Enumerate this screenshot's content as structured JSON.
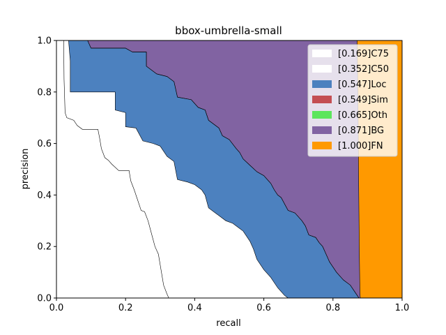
{
  "chart_data": {
    "type": "area",
    "title": "bbox-umbrella-small",
    "xlabel": "recall",
    "ylabel": "precision",
    "xlim": [
      0,
      1
    ],
    "ylim": [
      0,
      1
    ],
    "xticks": [
      "0.0",
      "0.2",
      "0.4",
      "0.6",
      "0.8",
      "1.0"
    ],
    "yticks": [
      "0.0",
      "0.2",
      "0.4",
      "0.6",
      "0.8",
      "1.0"
    ],
    "grid": false,
    "legend_position": "top-right",
    "series": [
      {
        "name": "[0.169]C75",
        "color": "#ffffff",
        "points": [
          [
            0.0,
            1.0
          ],
          [
            0.021,
            1.0
          ],
          [
            0.022,
            0.85
          ],
          [
            0.025,
            0.72
          ],
          [
            0.03,
            0.7
          ],
          [
            0.05,
            0.69
          ],
          [
            0.06,
            0.67
          ],
          [
            0.075,
            0.655
          ],
          [
            0.09,
            0.655
          ],
          [
            0.12,
            0.655
          ],
          [
            0.125,
            0.62
          ],
          [
            0.13,
            0.58
          ],
          [
            0.14,
            0.545
          ],
          [
            0.15,
            0.535
          ],
          [
            0.16,
            0.52
          ],
          [
            0.18,
            0.495
          ],
          [
            0.21,
            0.495
          ],
          [
            0.215,
            0.455
          ],
          [
            0.225,
            0.42
          ],
          [
            0.235,
            0.38
          ],
          [
            0.245,
            0.34
          ],
          [
            0.255,
            0.335
          ],
          [
            0.265,
            0.3
          ],
          [
            0.275,
            0.25
          ],
          [
            0.285,
            0.2
          ],
          [
            0.295,
            0.17
          ],
          [
            0.3,
            0.13
          ],
          [
            0.305,
            0.09
          ],
          [
            0.31,
            0.05
          ],
          [
            0.32,
            0.015
          ],
          [
            0.325,
            0.0
          ]
        ]
      },
      {
        "name": "[0.352]C50",
        "color": "#ffffff",
        "points": [
          [
            0.0,
            1.0
          ],
          [
            0.035,
            1.0
          ],
          [
            0.04,
            0.92
          ],
          [
            0.04,
            0.8
          ],
          [
            0.17,
            0.8
          ],
          [
            0.17,
            0.73
          ],
          [
            0.2,
            0.72
          ],
          [
            0.2,
            0.665
          ],
          [
            0.23,
            0.66
          ],
          [
            0.25,
            0.61
          ],
          [
            0.28,
            0.6
          ],
          [
            0.3,
            0.59
          ],
          [
            0.32,
            0.55
          ],
          [
            0.34,
            0.53
          ],
          [
            0.35,
            0.46
          ],
          [
            0.38,
            0.45
          ],
          [
            0.4,
            0.44
          ],
          [
            0.42,
            0.42
          ],
          [
            0.43,
            0.4
          ],
          [
            0.44,
            0.35
          ],
          [
            0.46,
            0.33
          ],
          [
            0.47,
            0.32
          ],
          [
            0.49,
            0.3
          ],
          [
            0.51,
            0.29
          ],
          [
            0.53,
            0.27
          ],
          [
            0.54,
            0.26
          ],
          [
            0.56,
            0.22
          ],
          [
            0.57,
            0.19
          ],
          [
            0.58,
            0.15
          ],
          [
            0.6,
            0.11
          ],
          [
            0.62,
            0.08
          ],
          [
            0.64,
            0.04
          ],
          [
            0.66,
            0.01
          ],
          [
            0.67,
            0.0
          ]
        ]
      },
      {
        "name": "[0.547]Loc",
        "color": "#4c81bf",
        "points": [
          [
            0.0,
            1.0
          ],
          [
            0.09,
            1.0
          ],
          [
            0.1,
            0.97
          ],
          [
            0.2,
            0.97
          ],
          [
            0.22,
            0.955
          ],
          [
            0.26,
            0.955
          ],
          [
            0.26,
            0.9
          ],
          [
            0.29,
            0.87
          ],
          [
            0.32,
            0.86
          ],
          [
            0.34,
            0.84
          ],
          [
            0.35,
            0.78
          ],
          [
            0.39,
            0.77
          ],
          [
            0.41,
            0.74
          ],
          [
            0.43,
            0.73
          ],
          [
            0.44,
            0.69
          ],
          [
            0.47,
            0.66
          ],
          [
            0.48,
            0.63
          ],
          [
            0.5,
            0.615
          ],
          [
            0.52,
            0.58
          ],
          [
            0.53,
            0.565
          ],
          [
            0.54,
            0.54
          ],
          [
            0.56,
            0.515
          ],
          [
            0.58,
            0.49
          ],
          [
            0.6,
            0.475
          ],
          [
            0.62,
            0.445
          ],
          [
            0.63,
            0.42
          ],
          [
            0.64,
            0.4
          ],
          [
            0.65,
            0.39
          ],
          [
            0.67,
            0.34
          ],
          [
            0.69,
            0.33
          ],
          [
            0.71,
            0.3
          ],
          [
            0.72,
            0.28
          ],
          [
            0.73,
            0.245
          ],
          [
            0.75,
            0.235
          ],
          [
            0.76,
            0.215
          ],
          [
            0.77,
            0.2
          ],
          [
            0.78,
            0.17
          ],
          [
            0.79,
            0.14
          ],
          [
            0.8,
            0.12
          ],
          [
            0.81,
            0.1
          ],
          [
            0.83,
            0.07
          ],
          [
            0.85,
            0.05
          ],
          [
            0.86,
            0.03
          ],
          [
            0.87,
            0.01
          ],
          [
            0.875,
            0.0
          ]
        ]
      },
      {
        "name": "[0.549]Sim",
        "color": "#c44e52",
        "points": [
          [
            0.0,
            1.0
          ],
          [
            0.09,
            1.0
          ],
          [
            0.1,
            0.97
          ],
          [
            0.2,
            0.97
          ],
          [
            0.22,
            0.955
          ],
          [
            0.26,
            0.955
          ],
          [
            0.26,
            0.9
          ],
          [
            0.29,
            0.87
          ],
          [
            0.32,
            0.86
          ],
          [
            0.34,
            0.84
          ],
          [
            0.35,
            0.78
          ],
          [
            0.39,
            0.77
          ],
          [
            0.41,
            0.74
          ],
          [
            0.43,
            0.73
          ],
          [
            0.44,
            0.69
          ],
          [
            0.47,
            0.66
          ],
          [
            0.48,
            0.63
          ],
          [
            0.5,
            0.615
          ],
          [
            0.52,
            0.58
          ],
          [
            0.53,
            0.565
          ],
          [
            0.54,
            0.54
          ],
          [
            0.56,
            0.515
          ],
          [
            0.58,
            0.49
          ],
          [
            0.6,
            0.475
          ],
          [
            0.62,
            0.445
          ],
          [
            0.63,
            0.42
          ],
          [
            0.64,
            0.4
          ],
          [
            0.65,
            0.39
          ],
          [
            0.67,
            0.34
          ],
          [
            0.69,
            0.33
          ],
          [
            0.71,
            0.3
          ],
          [
            0.72,
            0.28
          ],
          [
            0.73,
            0.245
          ],
          [
            0.75,
            0.235
          ],
          [
            0.76,
            0.215
          ],
          [
            0.77,
            0.2
          ],
          [
            0.78,
            0.17
          ],
          [
            0.79,
            0.14
          ],
          [
            0.8,
            0.12
          ],
          [
            0.81,
            0.1
          ],
          [
            0.83,
            0.07
          ],
          [
            0.85,
            0.05
          ],
          [
            0.86,
            0.03
          ],
          [
            0.87,
            0.01
          ],
          [
            0.875,
            0.0
          ]
        ]
      },
      {
        "name": "[0.665]Oth",
        "color": "#5ce65c",
        "points": [
          [
            0.0,
            1.0
          ],
          [
            0.09,
            1.0
          ],
          [
            0.1,
            0.97
          ],
          [
            0.2,
            0.97
          ],
          [
            0.22,
            0.955
          ],
          [
            0.26,
            0.955
          ],
          [
            0.26,
            0.9
          ],
          [
            0.29,
            0.87
          ],
          [
            0.32,
            0.86
          ],
          [
            0.34,
            0.84
          ],
          [
            0.35,
            0.78
          ],
          [
            0.39,
            0.77
          ],
          [
            0.41,
            0.74
          ],
          [
            0.43,
            0.73
          ],
          [
            0.44,
            0.69
          ],
          [
            0.47,
            0.66
          ],
          [
            0.48,
            0.63
          ],
          [
            0.5,
            0.615
          ],
          [
            0.52,
            0.58
          ],
          [
            0.53,
            0.565
          ],
          [
            0.54,
            0.54
          ],
          [
            0.56,
            0.515
          ],
          [
            0.58,
            0.49
          ],
          [
            0.6,
            0.475
          ],
          [
            0.62,
            0.445
          ],
          [
            0.63,
            0.42
          ],
          [
            0.64,
            0.4
          ],
          [
            0.65,
            0.39
          ],
          [
            0.67,
            0.34
          ],
          [
            0.69,
            0.33
          ],
          [
            0.71,
            0.3
          ],
          [
            0.72,
            0.28
          ],
          [
            0.73,
            0.245
          ],
          [
            0.75,
            0.235
          ],
          [
            0.76,
            0.215
          ],
          [
            0.77,
            0.2
          ],
          [
            0.78,
            0.17
          ],
          [
            0.79,
            0.14
          ],
          [
            0.8,
            0.12
          ],
          [
            0.81,
            0.1
          ],
          [
            0.83,
            0.07
          ],
          [
            0.85,
            0.05
          ],
          [
            0.86,
            0.03
          ],
          [
            0.87,
            0.01
          ],
          [
            0.875,
            0.0
          ]
        ]
      },
      {
        "name": "[0.871]BG",
        "color": "#8163a2",
        "points": [
          [
            0.0,
            1.0
          ],
          [
            0.87,
            1.0
          ],
          [
            0.87,
            0.98
          ],
          [
            0.872,
            0.8
          ],
          [
            0.874,
            0.5
          ],
          [
            0.876,
            0.2
          ],
          [
            0.878,
            0.02
          ],
          [
            0.879,
            0.0
          ]
        ]
      },
      {
        "name": "[1.000]FN",
        "color": "#ff9900",
        "points": [
          [
            0.0,
            1.0
          ],
          [
            1.0,
            1.0
          ],
          [
            1.0,
            0.0
          ]
        ]
      }
    ],
    "lower_boundaries": {
      "[0.547]Loc": [
        [
          0.0,
          0.0
        ],
        [
          0.325,
          0.0
        ],
        [
          0.33,
          0.0
        ],
        [
          0.32,
          0.015
        ],
        [
          0.31,
          0.05
        ],
        [
          0.305,
          0.09
        ],
        [
          0.3,
          0.13
        ],
        [
          0.295,
          0.17
        ],
        [
          0.285,
          0.2
        ],
        [
          0.275,
          0.25
        ],
        [
          0.265,
          0.3
        ],
        [
          0.255,
          0.335
        ],
        [
          0.245,
          0.34
        ],
        [
          0.235,
          0.38
        ],
        [
          0.225,
          0.42
        ],
        [
          0.215,
          0.455
        ],
        [
          0.21,
          0.495
        ],
        [
          0.18,
          0.495
        ],
        [
          0.16,
          0.52
        ],
        [
          0.15,
          0.535
        ],
        [
          0.14,
          0.545
        ],
        [
          0.13,
          0.58
        ],
        [
          0.125,
          0.62
        ],
        [
          0.12,
          0.655
        ],
        [
          0.09,
          0.655
        ],
        [
          0.075,
          0.655
        ],
        [
          0.06,
          0.67
        ],
        [
          0.05,
          0.69
        ],
        [
          0.03,
          0.7
        ],
        [
          0.025,
          0.72
        ],
        [
          0.022,
          0.85
        ],
        [
          0.021,
          1.0
        ]
      ]
    }
  }
}
